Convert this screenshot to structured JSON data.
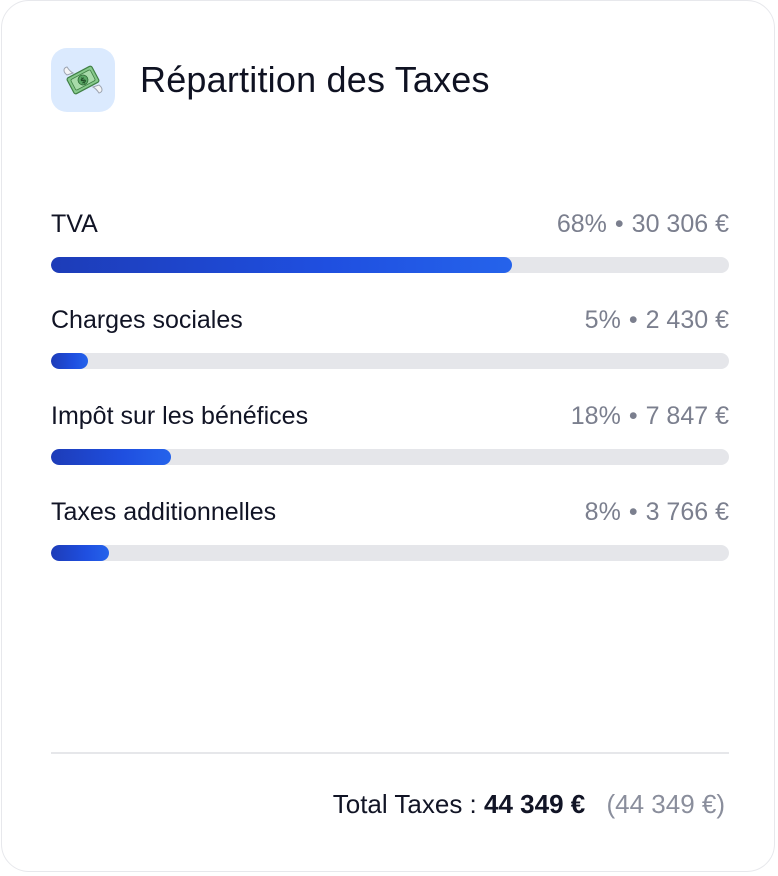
{
  "card": {
    "title": "Répartition des Taxes",
    "icon": "money-with-wings-icon"
  },
  "rows": [
    {
      "label": "TVA",
      "percent_text": "68%",
      "amount": "30 306 €",
      "fraction": 0.68
    },
    {
      "label": "Charges sociales",
      "percent_text": "5%",
      "amount": "2 430 €",
      "fraction": 0.055
    },
    {
      "label": "Impôt sur les bénéfices",
      "percent_text": "18%",
      "amount": "7 847 €",
      "fraction": 0.177
    },
    {
      "label": "Taxes additionnelles",
      "percent_text": "8%",
      "amount": "3 766 €",
      "fraction": 0.085
    }
  ],
  "separator": "•",
  "footer": {
    "label": "Total Taxes :",
    "total": "44 349 €",
    "secondary": "(44 349 €)"
  },
  "colors": {
    "accent": "#1f4fe0",
    "track": "#e5e6ea",
    "icon_bg": "#dbeafe"
  }
}
